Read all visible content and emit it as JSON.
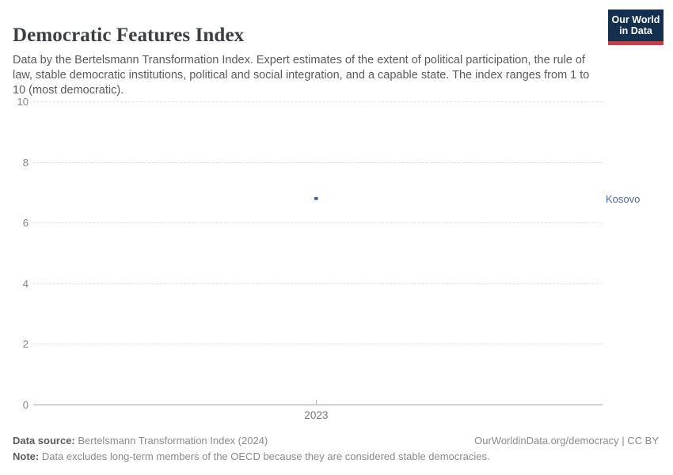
{
  "header": {
    "title": "Democratic Features Index",
    "subtitle": "Data by the Bertelsmann Transformation Index. Expert estimates of the extent of political participation, the rule of law, stable democratic institutions, political and social integration, and a capable state. The index ranges from 1 to 10 (most democratic).",
    "logo": {
      "line1": "Our World",
      "line2": "in Data",
      "bg_color": "#15304e",
      "accent_color": "#cb3b47"
    }
  },
  "chart_data": {
    "type": "scatter",
    "title": "Democratic Features Index",
    "x": [
      2023
    ],
    "series": [
      {
        "name": "Kosovo",
        "values": [
          6.8
        ],
        "point_color": "#3d5c92",
        "label_color": "#4c6a9c"
      }
    ],
    "xticks": [
      "2023"
    ],
    "yticks": [
      0,
      2,
      4,
      6,
      8,
      10
    ],
    "ylim": [
      0,
      10
    ],
    "xlabel": "",
    "ylabel": "",
    "grid": "horizontal-dashed",
    "legend_position": "right-entity-label"
  },
  "footer": {
    "source_label": "Data source:",
    "source_text": " Bertelsmann Transformation Index (2024)",
    "right_text": "OurWorldinData.org/democracy | CC BY",
    "note_label": "Note:",
    "note_text": " Data excludes long-term members of the OECD because they are considered stable democracies."
  }
}
